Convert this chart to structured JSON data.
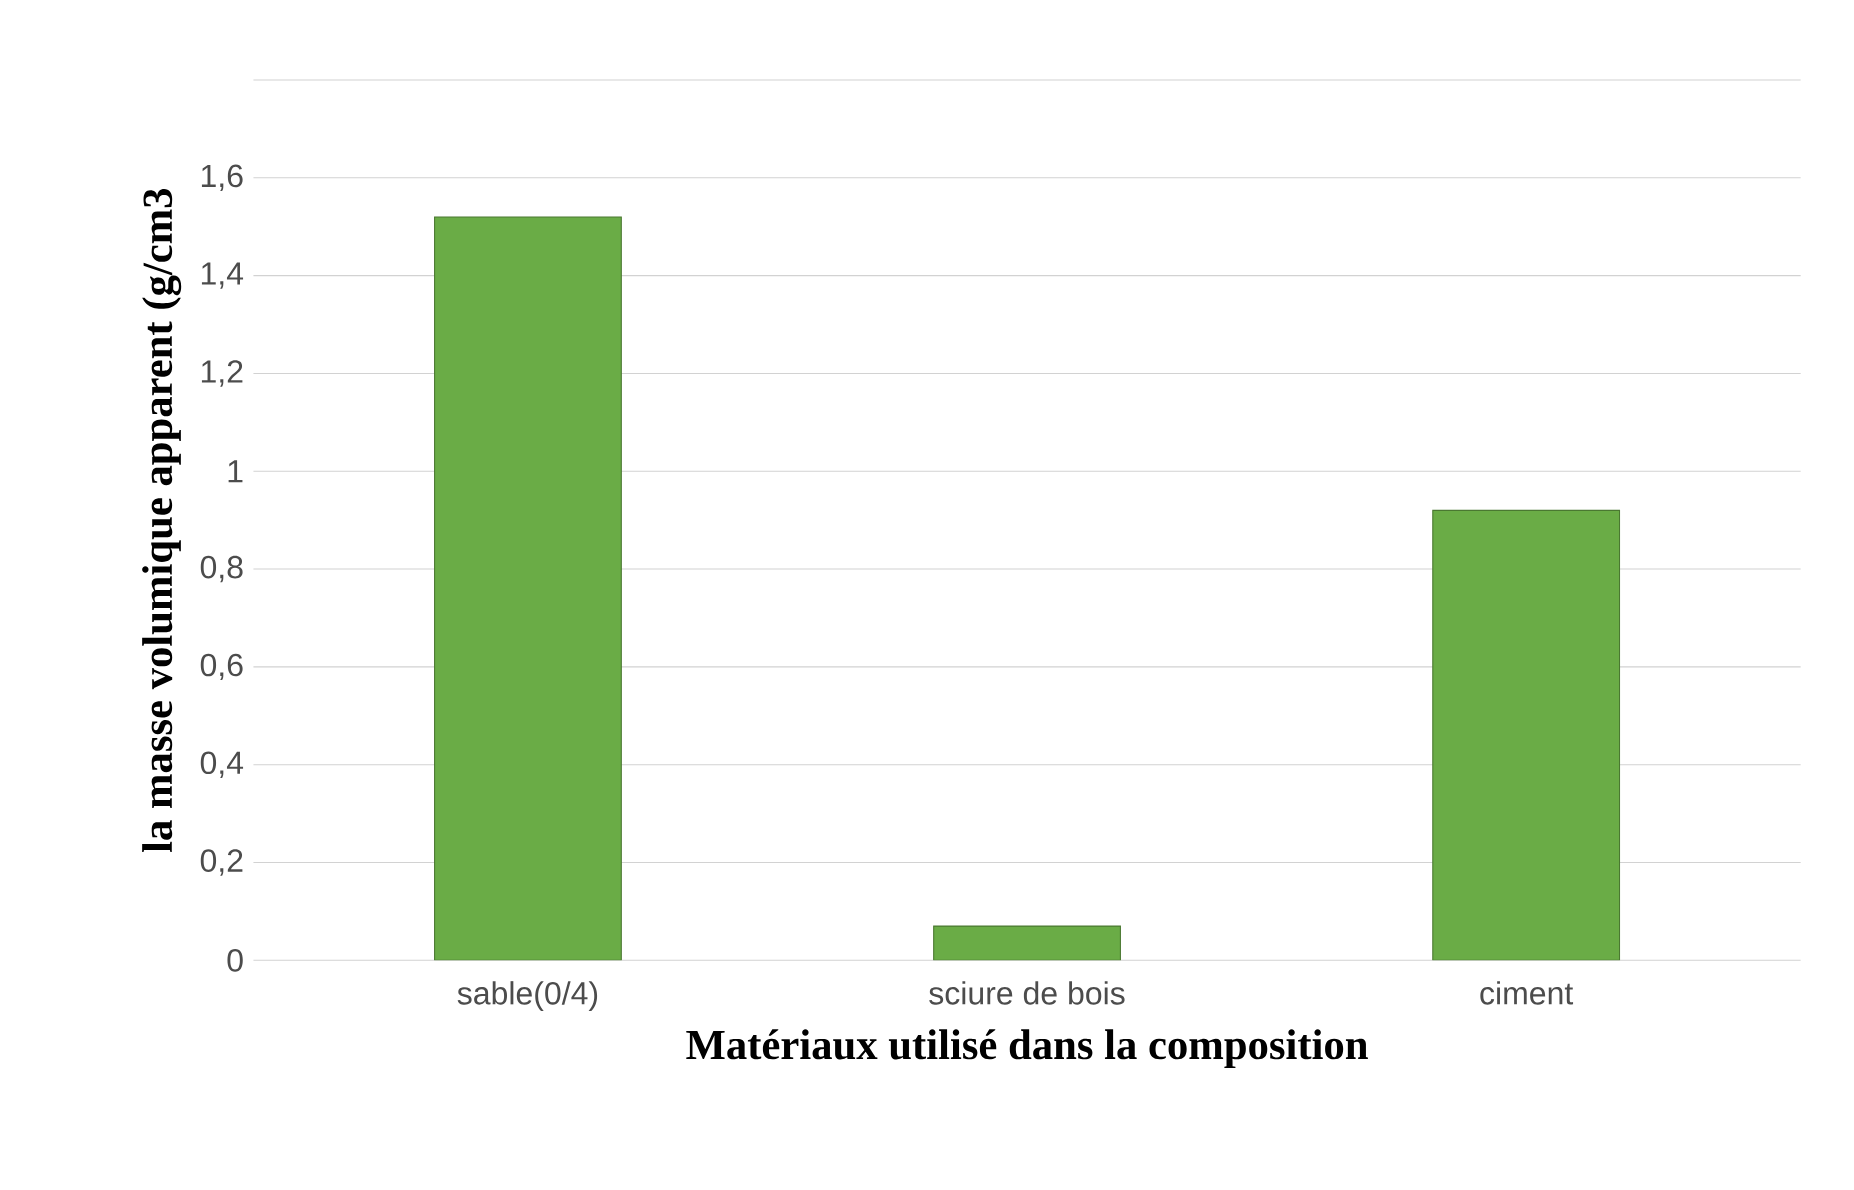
{
  "chart_data": {
    "type": "bar",
    "xlabel": "Matériaux utilisé dans la composition",
    "ylabel": "la masse volumique apparent (g/cm3",
    "categories": [
      "sable(0/4)",
      "sciure de bois",
      "ciment"
    ],
    "values": [
      1.52,
      0.07,
      0.92
    ],
    "color": "#6aac46",
    "ylim": [
      0,
      1.8
    ],
    "yticks": [
      0,
      {
        "value": 0.2,
        "label": "0,2"
      },
      {
        "value": 0.4,
        "label": "0,4"
      },
      {
        "value": 0.6,
        "label": "0,6"
      },
      {
        "value": 0.8,
        "label": "0,8"
      },
      1,
      {
        "value": 1.2,
        "label": "1,2"
      },
      {
        "value": 1.4,
        "label": "1,4"
      },
      {
        "value": 1.6,
        "label": "1,6"
      },
      {
        "value": 1.8,
        "label": null
      }
    ],
    "grid": "y"
  }
}
